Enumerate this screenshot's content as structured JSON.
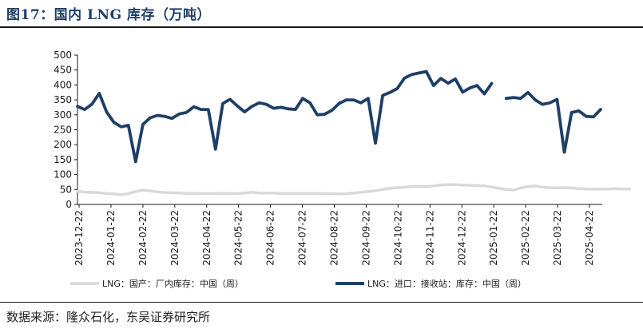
{
  "header": {
    "title": "图17：国内 LNG 库存（万吨）"
  },
  "footer": {
    "source": "数据来源：隆众石化，东吴证券研究所"
  },
  "chart_data": {
    "type": "line",
    "title": "国内 LNG 库存（万吨）",
    "ylim": [
      0,
      500
    ],
    "yticks": [
      0,
      50,
      100,
      150,
      200,
      250,
      300,
      350,
      400,
      450,
      500
    ],
    "xlabels": [
      "2023-12-22",
      "2024-01-22",
      "2024-02-22",
      "2024-03-22",
      "2024-04-22",
      "2024-05-22",
      "2024-06-22",
      "2024-07-22",
      "2024-08-22",
      "2024-09-22",
      "2024-10-22",
      "2024-11-22",
      "2024-12-22",
      "2025-01-22",
      "2025-02-22",
      "2025-03-22",
      "2025-04-22"
    ],
    "legend_position": "bottom",
    "series": [
      {
        "name": "LNG：国产：厂内库存：中国（周）",
        "color": "#d9d9d9",
        "values": [
          44,
          41,
          41,
          39,
          37,
          35,
          33,
          36,
          43,
          48,
          45,
          42,
          40,
          39,
          38,
          37,
          37,
          36,
          37,
          36,
          37,
          37,
          36,
          38,
          41,
          38,
          38,
          38,
          37,
          37,
          37,
          37,
          37,
          37,
          36,
          36,
          35,
          36,
          38,
          41,
          43,
          46,
          50,
          54,
          56,
          58,
          60,
          61,
          60,
          62,
          65,
          66,
          66,
          65,
          64,
          63,
          62,
          58,
          54,
          50,
          48,
          55,
          60,
          62,
          58,
          56,
          55,
          56,
          55,
          53,
          52,
          51,
          52,
          51,
          53,
          52,
          52
        ]
      },
      {
        "name": "LNG：进口：接收站：库存：中国（周）",
        "color": "#1e3f66",
        "values": [
          328,
          318,
          336,
          372,
          310,
          275,
          260,
          265,
          143,
          268,
          290,
          298,
          295,
          288,
          303,
          308,
          327,
          318,
          318,
          185,
          338,
          352,
          330,
          310,
          328,
          340,
          335,
          322,
          325,
          320,
          318,
          355,
          340,
          300,
          302,
          315,
          338,
          350,
          350,
          340,
          355,
          205,
          365,
          375,
          388,
          423,
          435,
          440,
          445,
          398,
          422,
          406,
          420,
          376,
          390,
          398,
          370,
          405,
          null,
          355,
          358,
          355,
          375,
          350,
          335,
          340,
          352,
          175,
          308,
          313,
          295,
          293,
          318
        ]
      }
    ]
  }
}
